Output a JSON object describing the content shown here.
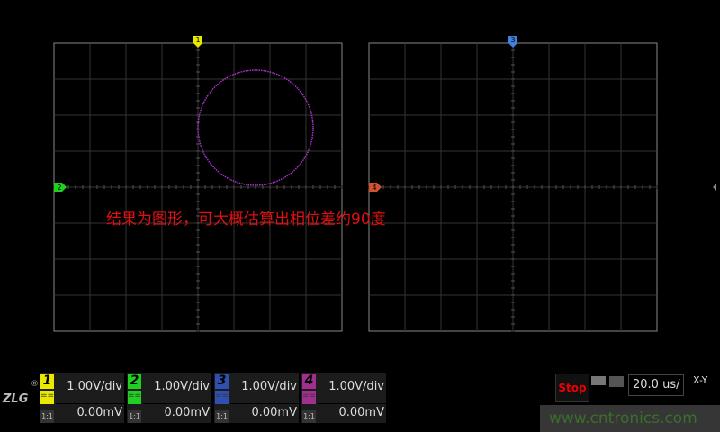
{
  "annotation": "结果为图形，可大概估算出相位差约90度",
  "display": {
    "grid_divisions": 8,
    "left_plot": {
      "markers": [
        "1",
        "2"
      ],
      "trace_color": "#b030d0",
      "trace": {
        "shape": "circle",
        "center_div": [
          1.6,
          1.65
        ],
        "radius_div": 1.6
      }
    },
    "right_plot": {
      "markers": [
        "3",
        "4"
      ]
    }
  },
  "channels": [
    {
      "num": "1",
      "color": "#e8e800",
      "scale": "1.00V/div",
      "offset": "0.00mV",
      "coupling": "DC",
      "probe": "1:1"
    },
    {
      "num": "2",
      "color": "#20d020",
      "scale": "1.00V/div",
      "offset": "0.00mV",
      "coupling": "DC",
      "probe": "1:1"
    },
    {
      "num": "3",
      "color": "#3050b0",
      "scale": "1.00V/div",
      "offset": "0.00mV",
      "coupling": "DC",
      "probe": "1:1"
    },
    {
      "num": "4",
      "color": "#a03090",
      "scale": "1.00V/div",
      "offset": "0.00mV",
      "coupling": "DC",
      "probe": "1:1"
    }
  ],
  "logo": "ZLG",
  "status": {
    "run_state": "Stop",
    "timebase": "20.0 us/",
    "mode": "X-Y"
  },
  "watermark": "www.cntronics.com"
}
